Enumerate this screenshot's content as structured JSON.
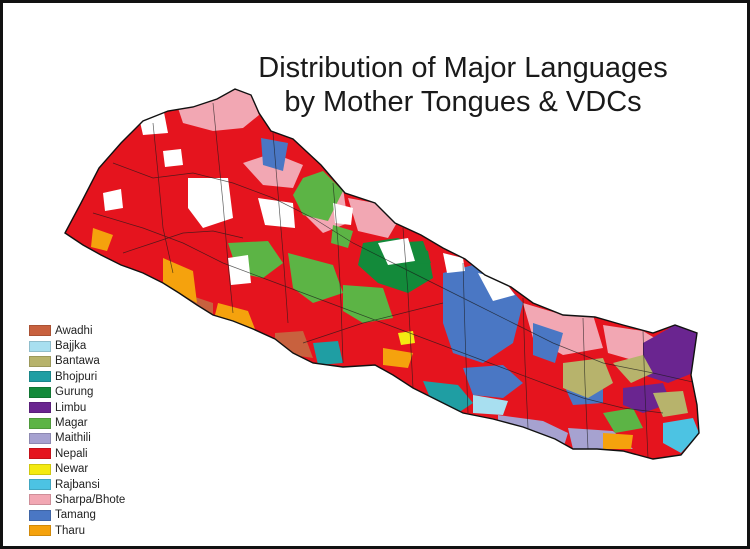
{
  "title": {
    "line1": "Distribution of Major Languages",
    "line2": "by Mother Tongues & VDCs"
  },
  "legend": [
    {
      "label": "Awadhi",
      "color": "#c8613e"
    },
    {
      "label": "Bajjka",
      "color": "#a8dff0"
    },
    {
      "label": "Bantawa",
      "color": "#b7b36c"
    },
    {
      "label": "Bhojpuri",
      "color": "#1f9ea3"
    },
    {
      "label": "Gurung",
      "color": "#138a3a"
    },
    {
      "label": "Limbu",
      "color": "#6a2590"
    },
    {
      "label": "Magar",
      "color": "#5cb445"
    },
    {
      "label": "Maithili",
      "color": "#a6a2d0"
    },
    {
      "label": "Nepali",
      "color": "#e5141e"
    },
    {
      "label": "Newar",
      "color": "#f4ea12"
    },
    {
      "label": "Rajbansi",
      "color": "#4cc3e3"
    },
    {
      "label": "Sharpa/Bhote",
      "color": "#f2a7b3"
    },
    {
      "label": "Tamang",
      "color": "#4a77c4"
    },
    {
      "label": "Tharu",
      "color": "#f5a20d"
    }
  ],
  "map": {
    "region": "Nepal",
    "base_color": "#e5141e",
    "unmapped_color": "#ffffff"
  }
}
